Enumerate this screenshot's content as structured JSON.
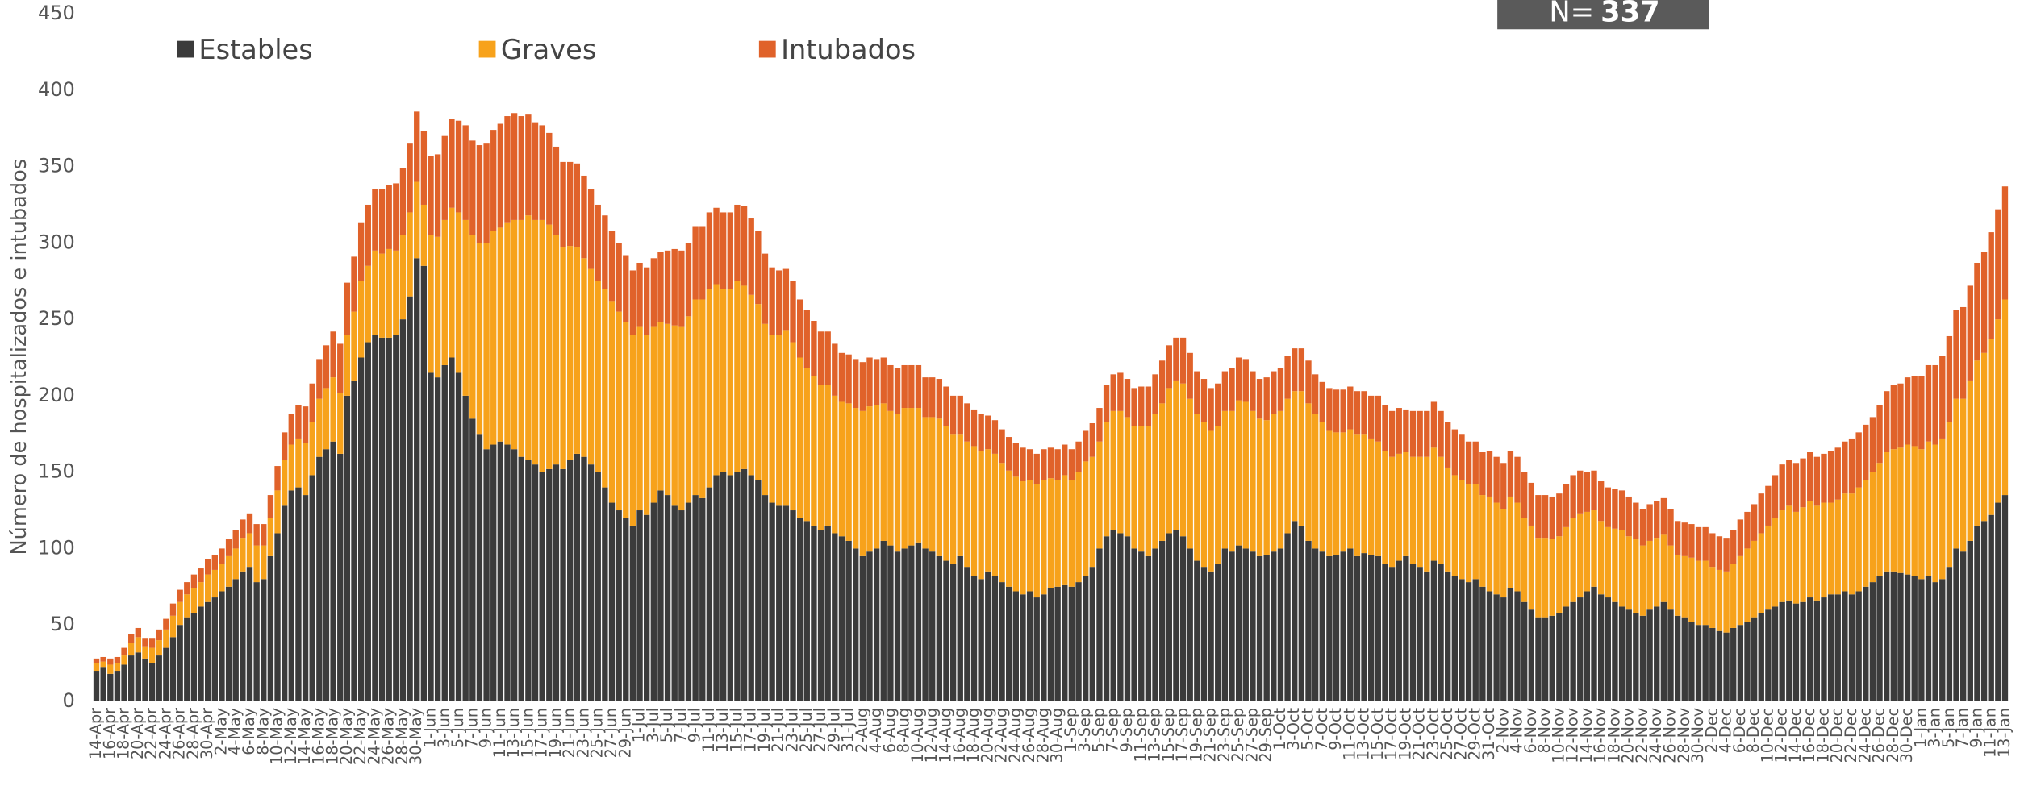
{
  "chart_data": {
    "type": "stacked_bar",
    "y_label": "Número de hospitalizados e intubados",
    "annotation_label": "N=",
    "annotation_value": 337,
    "legend": "top",
    "grid": false,
    "ylim": [
      0,
      450
    ],
    "yticks": [
      0,
      50,
      100,
      150,
      200,
      250,
      300,
      350,
      400,
      450
    ],
    "categories": [
      "14-Apr",
      null,
      "16-Apr",
      null,
      "18-Apr",
      null,
      "20-Apr",
      null,
      "22-Apr",
      null,
      "24-Apr",
      null,
      "26-Apr",
      null,
      "28-Apr",
      null,
      "30-Apr",
      null,
      "2-May",
      null,
      "4-May",
      null,
      "6-May",
      null,
      "8-May",
      null,
      "10-May",
      null,
      "12-May",
      null,
      "14-May",
      null,
      "16-May",
      null,
      "18-May",
      null,
      "20-May",
      null,
      "22-May",
      null,
      "24-May",
      null,
      "26-May",
      null,
      "28-May",
      null,
      "30-May",
      null,
      "1-Jun",
      null,
      "3-Jun",
      null,
      "5-Jun",
      null,
      "7-Jun",
      null,
      "9-Jun",
      null,
      "11-Jun",
      null,
      "13-Jun",
      null,
      "15-Jun",
      null,
      "17-Jun",
      null,
      "19-Jun",
      null,
      "21-Jun",
      null,
      "23-Jun",
      null,
      "25-Jun",
      null,
      "27-Jun",
      null,
      "29-Jun",
      null,
      "1-Jul",
      null,
      "3-Jul",
      null,
      "5-Jul",
      null,
      "7-Jul",
      null,
      "9-Jul",
      null,
      "11-Jul",
      null,
      "13-Jul",
      null,
      "15-Jul",
      null,
      "17-Jul",
      null,
      "19-Jul",
      null,
      "21-Jul",
      null,
      "23-Jul",
      null,
      "25-Jul",
      null,
      "27-Jul",
      null,
      "29-Jul",
      null,
      "31-Jul",
      null,
      "2-Aug",
      null,
      "4-Aug",
      null,
      "6-Aug",
      null,
      "8-Aug",
      null,
      "10-Aug",
      null,
      "12-Aug",
      null,
      "14-Aug",
      null,
      "16-Aug",
      null,
      "18-Aug",
      null,
      "20-Aug",
      null,
      "22-Aug",
      null,
      "24-Aug",
      null,
      "26-Aug",
      null,
      "28-Aug",
      null,
      "30-Aug",
      null,
      "1-Sep",
      null,
      "3-Sep",
      null,
      "5-Sep",
      null,
      "7-Sep",
      null,
      "9-Sep",
      null,
      "11-Sep",
      null,
      "13-Sep",
      null,
      "15-Sep",
      null,
      "17-Sep",
      null,
      "19-Sep",
      null,
      "21-Sep",
      null,
      "23-Sep",
      null,
      "25-Sep",
      null,
      "27-Sep",
      null,
      "29-Sep",
      null,
      "1-Oct",
      null,
      "3-Oct",
      null,
      "5-Oct",
      null,
      "7-Oct",
      null,
      "9-Oct",
      null,
      "11-Oct",
      null,
      "13-Oct",
      null,
      "15-Oct",
      null,
      "17-Oct",
      null,
      "19-Oct",
      null,
      "21-Oct",
      null,
      "23-Oct",
      null,
      "25-Oct",
      null,
      "27-Oct",
      null,
      "29-Oct",
      null,
      "31-Oct",
      null,
      "2-Nov",
      null,
      "4-Nov",
      null,
      "6-Nov",
      null,
      "8-Nov",
      null,
      "10-Nov",
      null,
      "12-Nov",
      null,
      "14-Nov",
      null,
      "16-Nov",
      null,
      "18-Nov",
      null,
      "20-Nov",
      null,
      "22-Nov",
      null,
      "24-Nov",
      null,
      "26-Nov",
      null,
      "28-Nov",
      null,
      "30-Nov",
      null,
      "2-Dec",
      null,
      "4-Dec",
      null,
      "6-Dec",
      null,
      "8-Dec",
      null,
      "10-Dec",
      null,
      "12-Dec",
      null,
      "14-Dec",
      null,
      "16-Dec",
      null,
      "18-Dec",
      null,
      "20-Dec",
      null,
      "22-Dec",
      null,
      "24-Dec",
      null,
      "26-Dec",
      null,
      "28-Dec",
      null,
      "30-Dec",
      null,
      "1-Jan",
      null,
      "3-Jan",
      null,
      "5-Jan",
      null,
      "7-Jan",
      null,
      "9-Jan",
      null,
      "11-Jan",
      null,
      "13-Jan"
    ],
    "series": [
      {
        "name": "Estables",
        "color": "#3b3b3b",
        "values": [
          20,
          22,
          18,
          20,
          24,
          30,
          32,
          28,
          25,
          30,
          35,
          42,
          50,
          55,
          58,
          62,
          65,
          68,
          72,
          75,
          80,
          85,
          88,
          78,
          80,
          95,
          110,
          128,
          138,
          140,
          135,
          148,
          160,
          165,
          170,
          162,
          200,
          210,
          225,
          235,
          240,
          238,
          238,
          240,
          250,
          265,
          290,
          285,
          215,
          212,
          220,
          225,
          215,
          200,
          185,
          175,
          165,
          168,
          170,
          168,
          165,
          160,
          158,
          155,
          150,
          152,
          155,
          152,
          158,
          162,
          160,
          155,
          150,
          140,
          130,
          125,
          120,
          115,
          125,
          122,
          130,
          138,
          135,
          128,
          125,
          130,
          135,
          133,
          140,
          148,
          150,
          148,
          150,
          152,
          148,
          145,
          135,
          130,
          128,
          128,
          125,
          120,
          118,
          115,
          112,
          115,
          110,
          108,
          105,
          100,
          95,
          98,
          100,
          105,
          102,
          98,
          100,
          102,
          104,
          100,
          98,
          95,
          92,
          90,
          95,
          88,
          82,
          80,
          85,
          82,
          78,
          75,
          72,
          70,
          72,
          68,
          70,
          74,
          75,
          76,
          75,
          78,
          82,
          88,
          100,
          108,
          112,
          110,
          108,
          100,
          98,
          95,
          100,
          105,
          110,
          112,
          108,
          100,
          92,
          88,
          85,
          90,
          100,
          98,
          102,
          100,
          98,
          95,
          96,
          98,
          100,
          110,
          118,
          115,
          105,
          100,
          98,
          95,
          96,
          98,
          100,
          95,
          97,
          96,
          95,
          90,
          88,
          92,
          95,
          90,
          88,
          85,
          92,
          90,
          85,
          82,
          80,
          78,
          80,
          75,
          72,
          70,
          68,
          74,
          72,
          65,
          60,
          55,
          55,
          56,
          58,
          62,
          65,
          68,
          72,
          75,
          70,
          68,
          65,
          62,
          60,
          58,
          56,
          60,
          62,
          65,
          60,
          56,
          55,
          52,
          50,
          50,
          48,
          46,
          45,
          48,
          50,
          52,
          55,
          58,
          60,
          62,
          65,
          66,
          64,
          65,
          68,
          66,
          68,
          70,
          70,
          72,
          70,
          72,
          75,
          78,
          82,
          85,
          85,
          84,
          83,
          82,
          80,
          82,
          78,
          80,
          88,
          100,
          98,
          105,
          115,
          118,
          122,
          130,
          135
        ]
      },
      {
        "name": "Graves",
        "color": "#f7a21b",
        "values": [
          5,
          4,
          6,
          5,
          6,
          8,
          10,
          8,
          10,
          10,
          12,
          14,
          15,
          15,
          16,
          16,
          18,
          18,
          18,
          20,
          20,
          22,
          22,
          24,
          22,
          25,
          28,
          30,
          30,
          32,
          34,
          35,
          38,
          40,
          42,
          40,
          40,
          45,
          50,
          50,
          55,
          55,
          58,
          55,
          55,
          55,
          50,
          40,
          90,
          92,
          95,
          98,
          105,
          115,
          120,
          125,
          135,
          140,
          140,
          145,
          150,
          155,
          160,
          160,
          165,
          160,
          150,
          145,
          140,
          135,
          130,
          128,
          125,
          130,
          132,
          130,
          128,
          125,
          120,
          118,
          115,
          110,
          112,
          118,
          120,
          122,
          128,
          130,
          130,
          125,
          120,
          122,
          125,
          120,
          118,
          115,
          112,
          110,
          112,
          115,
          110,
          105,
          100,
          98,
          95,
          92,
          90,
          88,
          90,
          92,
          95,
          95,
          94,
          90,
          88,
          90,
          92,
          90,
          88,
          86,
          88,
          90,
          88,
          85,
          80,
          82,
          85,
          84,
          80,
          80,
          78,
          76,
          75,
          74,
          73,
          74,
          75,
          72,
          70,
          72,
          70,
          72,
          75,
          72,
          70,
          75,
          78,
          80,
          78,
          80,
          82,
          85,
          88,
          90,
          95,
          98,
          100,
          98,
          96,
          95,
          92,
          90,
          90,
          92,
          95,
          96,
          92,
          90,
          88,
          90,
          90,
          88,
          85,
          88,
          90,
          88,
          85,
          82,
          80,
          78,
          78,
          80,
          78,
          76,
          75,
          74,
          72,
          70,
          68,
          70,
          72,
          75,
          74,
          70,
          68,
          66,
          65,
          64,
          62,
          60,
          62,
          60,
          58,
          60,
          58,
          55,
          55,
          52,
          52,
          50,
          50,
          52,
          55,
          55,
          52,
          50,
          48,
          46,
          48,
          50,
          48,
          48,
          46,
          45,
          45,
          44,
          42,
          40,
          40,
          42,
          42,
          42,
          40,
          40,
          40,
          42,
          45,
          48,
          50,
          52,
          55,
          58,
          60,
          62,
          60,
          62,
          63,
          62,
          62,
          60,
          62,
          64,
          66,
          68,
          70,
          72,
          74,
          78,
          80,
          82,
          85,
          85,
          85,
          88,
          90,
          92,
          95,
          98,
          100,
          105,
          108,
          110,
          115,
          120,
          128
        ]
      },
      {
        "name": "Intubados",
        "color": "#e0622a",
        "values": [
          3,
          3,
          4,
          4,
          5,
          6,
          6,
          5,
          6,
          7,
          7,
          8,
          8,
          8,
          9,
          9,
          10,
          10,
          10,
          11,
          12,
          12,
          13,
          14,
          14,
          15,
          16,
          18,
          20,
          22,
          24,
          25,
          26,
          28,
          30,
          32,
          34,
          36,
          38,
          40,
          40,
          42,
          42,
          44,
          44,
          45,
          46,
          48,
          52,
          54,
          55,
          58,
          60,
          62,
          62,
          64,
          65,
          66,
          68,
          70,
          70,
          68,
          66,
          64,
          62,
          60,
          58,
          56,
          55,
          55,
          54,
          52,
          50,
          48,
          46,
          45,
          44,
          42,
          42,
          44,
          45,
          46,
          48,
          50,
          50,
          48,
          48,
          48,
          50,
          50,
          50,
          50,
          50,
          52,
          50,
          48,
          46,
          44,
          42,
          40,
          40,
          38,
          38,
          36,
          35,
          35,
          34,
          32,
          32,
          32,
          32,
          32,
          30,
          30,
          30,
          30,
          28,
          28,
          28,
          26,
          26,
          26,
          26,
          25,
          25,
          25,
          24,
          24,
          22,
          22,
          22,
          22,
          22,
          22,
          20,
          20,
          20,
          20,
          20,
          20,
          20,
          20,
          20,
          22,
          22,
          24,
          24,
          25,
          25,
          25,
          26,
          26,
          26,
          28,
          28,
          28,
          30,
          30,
          28,
          28,
          28,
          28,
          26,
          28,
          28,
          28,
          26,
          26,
          28,
          28,
          28,
          28,
          28,
          28,
          28,
          26,
          26,
          28,
          28,
          28,
          28,
          28,
          28,
          28,
          30,
          30,
          30,
          30,
          28,
          30,
          30,
          30,
          30,
          30,
          30,
          30,
          30,
          28,
          28,
          28,
          30,
          30,
          30,
          30,
          30,
          30,
          28,
          28,
          28,
          28,
          28,
          28,
          28,
          28,
          26,
          26,
          26,
          26,
          26,
          26,
          26,
          24,
          24,
          24,
          24,
          24,
          24,
          22,
          22,
          22,
          22,
          22,
          22,
          22,
          22,
          22,
          24,
          24,
          24,
          26,
          26,
          28,
          30,
          30,
          32,
          32,
          32,
          32,
          32,
          34,
          34,
          34,
          36,
          36,
          36,
          36,
          38,
          40,
          42,
          42,
          44,
          46,
          48,
          50,
          52,
          54,
          56,
          58,
          60,
          62,
          64,
          66,
          70,
          72,
          74
        ]
      }
    ]
  }
}
